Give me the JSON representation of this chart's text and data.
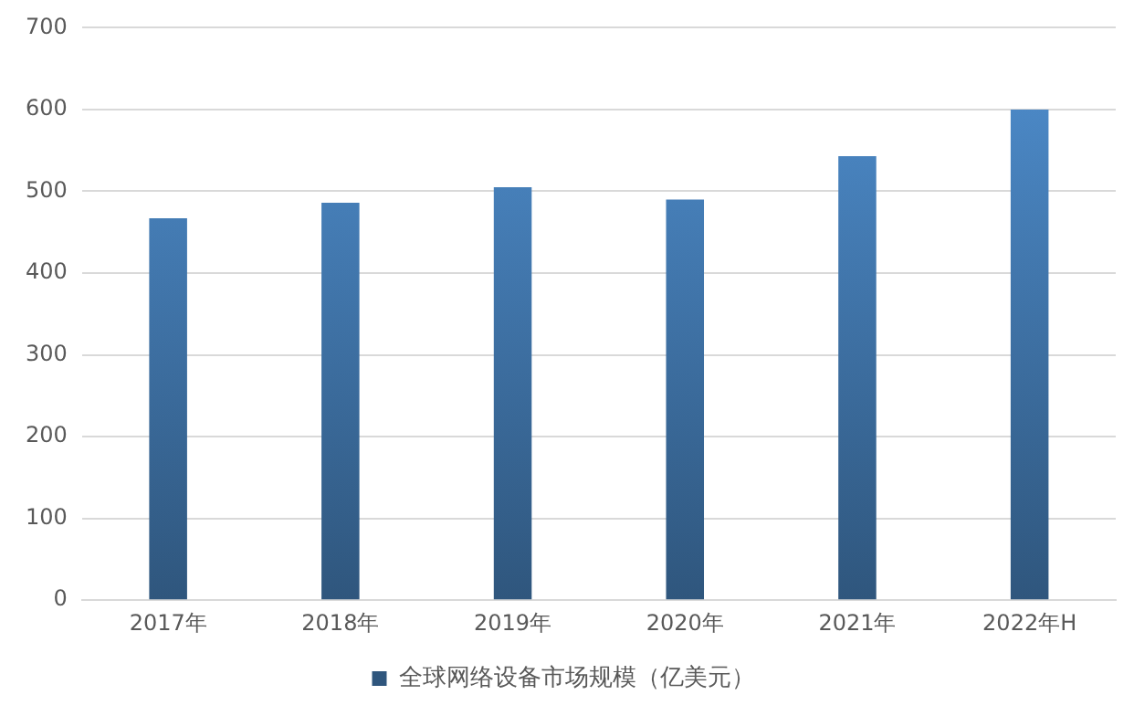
{
  "chart_data": {
    "type": "bar",
    "categories": [
      "2017年",
      "2018年",
      "2019年",
      "2020年",
      "2021年",
      "2022年H"
    ],
    "series": [
      {
        "name": "全球网络设备市场规模（亿美元）",
        "color": "#4f8fd0",
        "values": [
          467,
          486,
          505,
          490,
          543,
          600
        ]
      }
    ],
    "ylim": [
      0,
      700
    ],
    "yticks": [
      0,
      100,
      200,
      300,
      400,
      500,
      600,
      700
    ],
    "grid": "y",
    "legend": "bottom"
  }
}
